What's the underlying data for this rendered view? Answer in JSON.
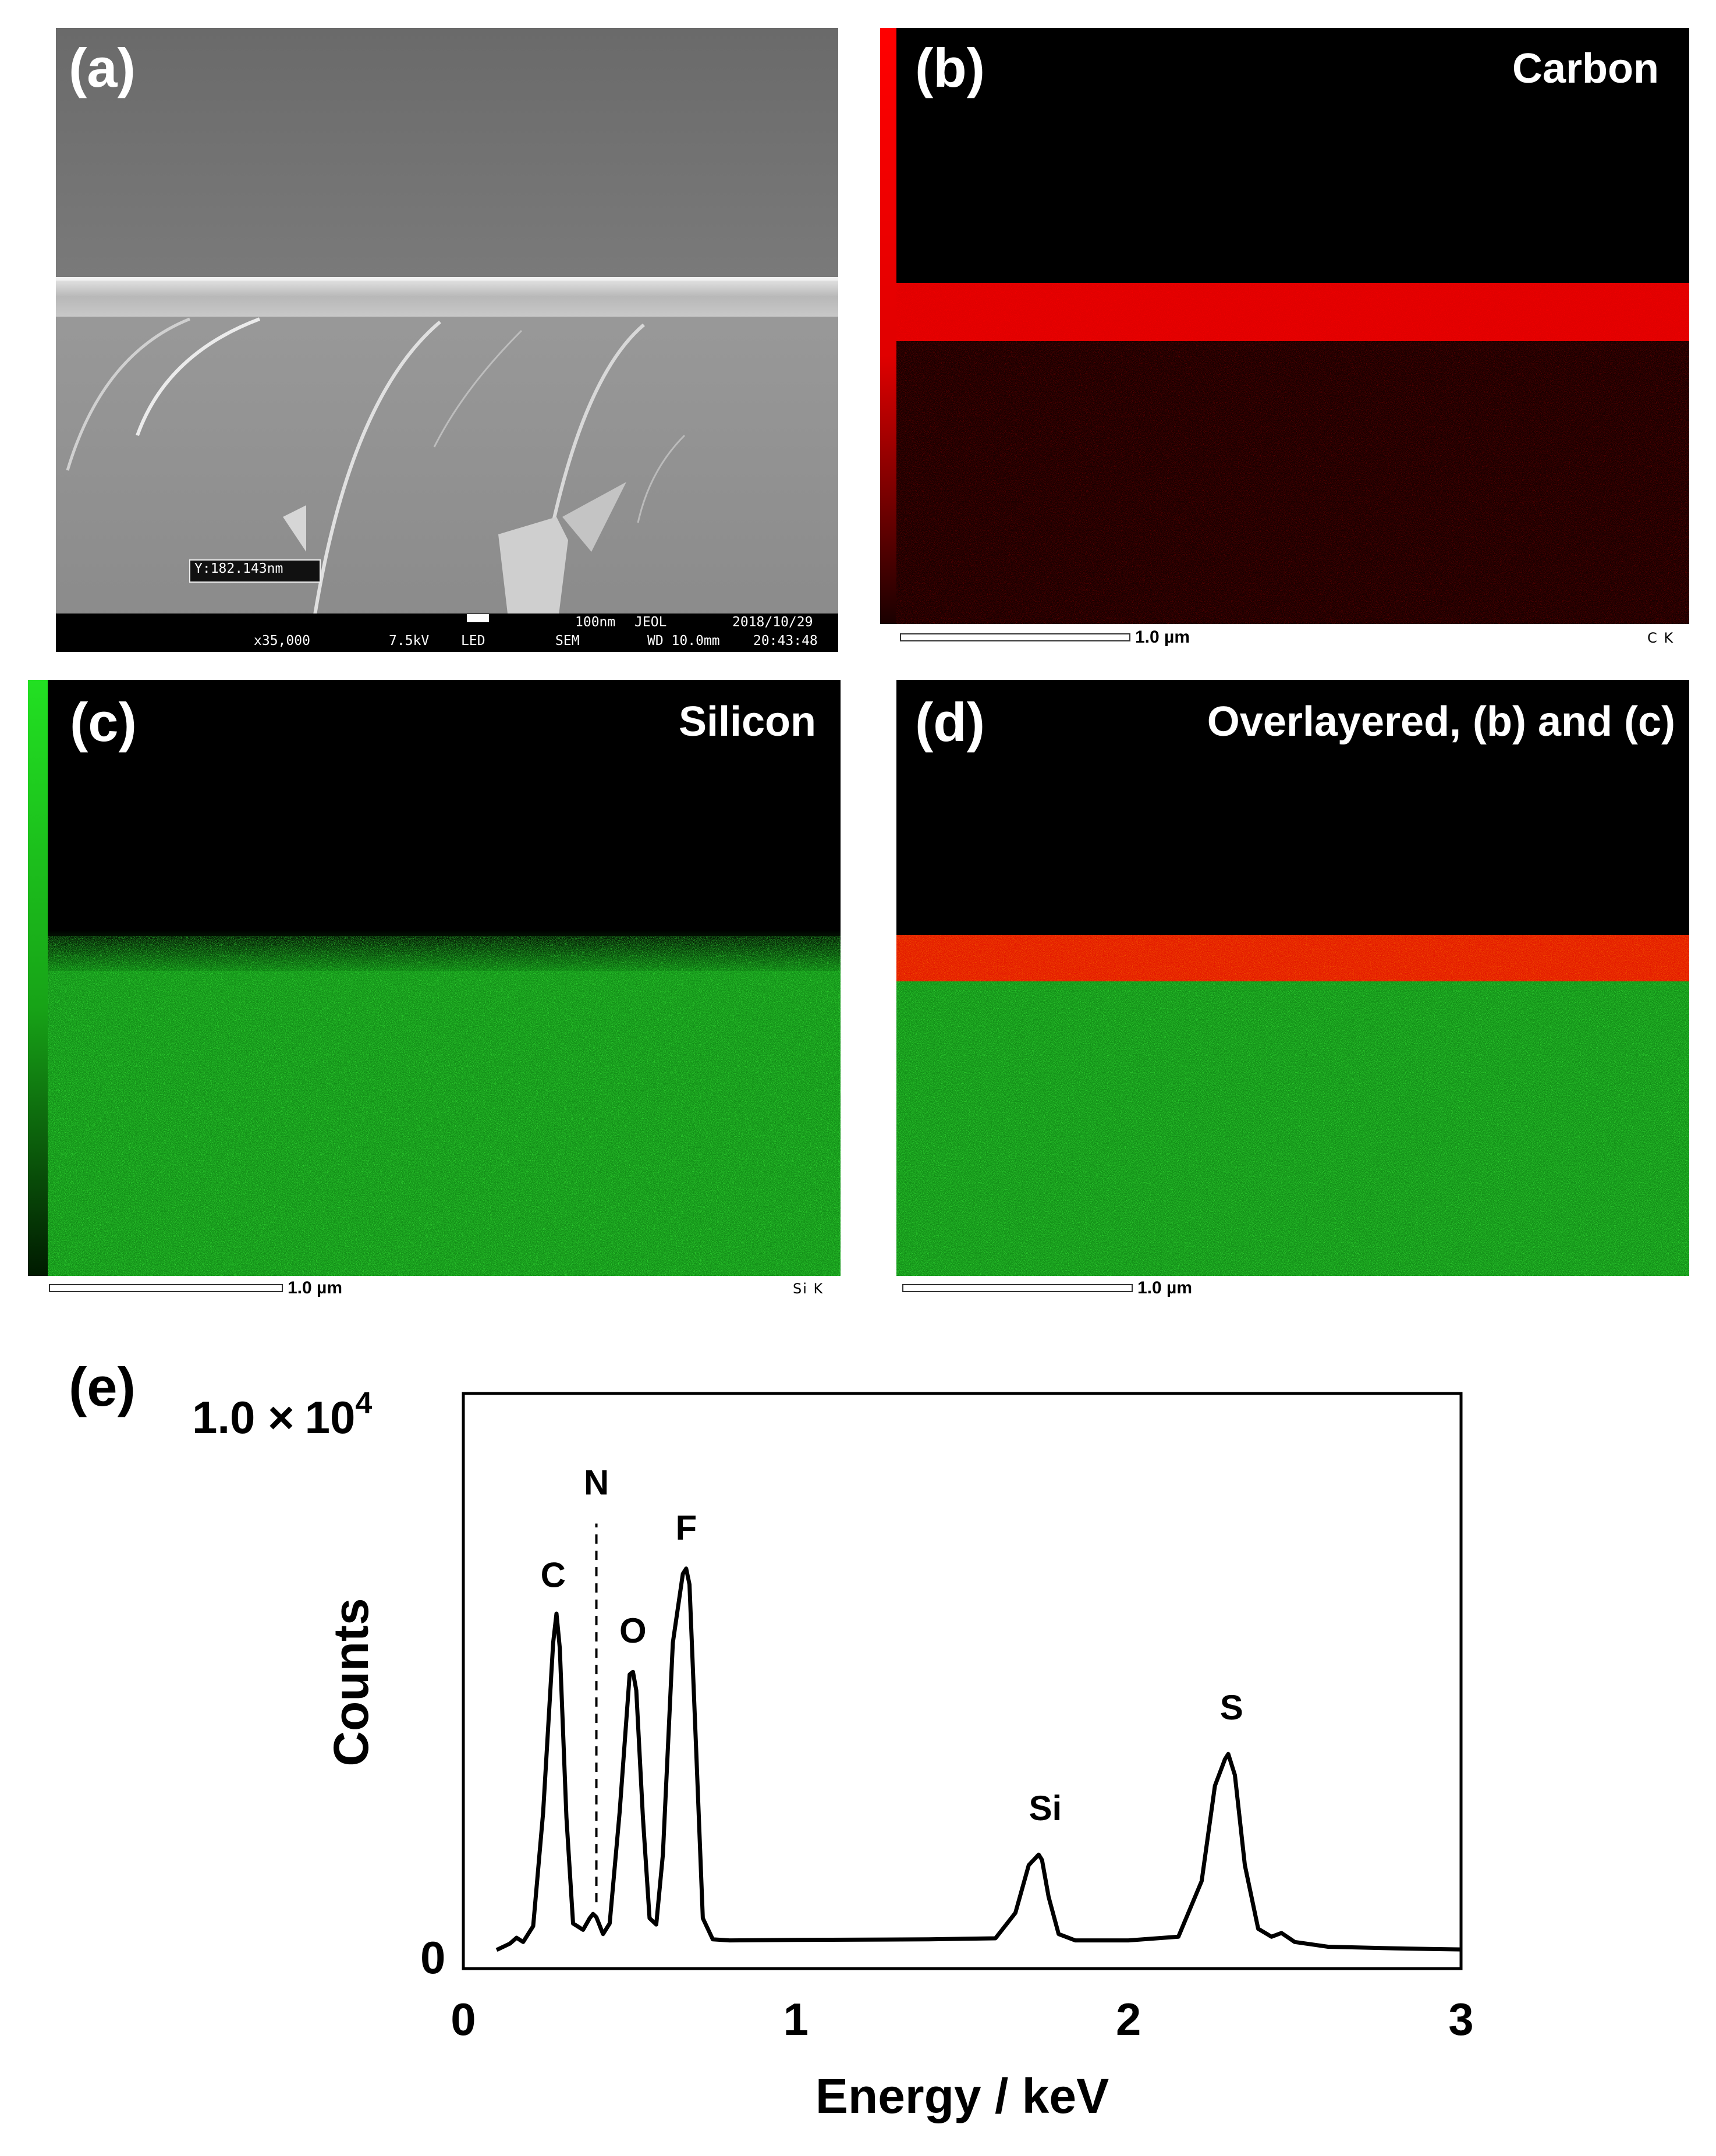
{
  "panels": {
    "a": {
      "label": "(a)",
      "measurement": "Y:182.143nm",
      "info_bar": {
        "magnification": "x35,000",
        "voltage": "7.5kV",
        "detector": "LED",
        "mode": "SEM",
        "scale": "100nm",
        "maker": "JEOL",
        "working_distance": "WD 10.0mm",
        "date": "2018/10/29",
        "time": "20:43:48"
      }
    },
    "b": {
      "label": "(b)",
      "element": "Carbon",
      "scale_label": "1.0 µm",
      "line_name": "C K",
      "color": "#ff0000"
    },
    "c": {
      "label": "(c)",
      "element": "Silicon",
      "scale_label": "1.0 µm",
      "line_name": "Si K",
      "color": "#1fd11f"
    },
    "d": {
      "label": "(d)",
      "element": "Overlayered, (b) and (c)",
      "scale_label": "1.0 µm"
    },
    "e": {
      "label": "(e)"
    }
  },
  "chart_data": {
    "type": "line",
    "title": "",
    "xlabel": "Energy / keV",
    "ylabel": "Counts",
    "xlim": [
      0,
      3
    ],
    "ylim": [
      0,
      10000
    ],
    "x_ticks": [
      "0",
      "1",
      "2",
      "3"
    ],
    "y_ticks": [
      "0",
      "1.0 × 10⁴"
    ],
    "y_top_label": {
      "mantissa": "1.0 ×",
      "base": "10",
      "exponent": "4"
    },
    "y_bottom_label": "0",
    "series": [
      {
        "x": [
          0.1,
          0.14,
          0.16,
          0.18,
          0.21,
          0.24,
          0.27,
          0.28,
          0.29,
          0.31,
          0.33,
          0.36,
          0.38,
          0.39,
          0.4,
          0.42,
          0.44,
          0.47,
          0.5,
          0.51,
          0.52,
          0.54,
          0.56,
          0.58,
          0.6,
          0.63,
          0.66,
          0.67,
          0.68,
          0.7,
          0.72,
          0.75,
          0.8,
          1.0,
          1.4,
          1.6,
          1.66,
          1.7,
          1.73,
          1.74,
          1.76,
          1.79,
          1.84,
          2.0,
          2.15,
          2.22,
          2.26,
          2.29,
          2.3,
          2.32,
          2.35,
          2.39,
          2.43,
          2.46,
          2.5,
          2.6,
          2.8,
          3.0
        ],
        "y": [
          0,
          120,
          230,
          150,
          450,
          2600,
          5800,
          6350,
          5700,
          2500,
          500,
          380,
          600,
          680,
          620,
          300,
          500,
          2600,
          5200,
          5250,
          4900,
          2500,
          600,
          480,
          1800,
          5800,
          7100,
          7200,
          6900,
          3800,
          600,
          200,
          180,
          190,
          200,
          220,
          700,
          1600,
          1800,
          1700,
          1000,
          300,
          180,
          180,
          250,
          1300,
          3100,
          3600,
          3700,
          3300,
          1600,
          400,
          250,
          320,
          150,
          60,
          30,
          10
        ]
      }
    ],
    "peak_labels": [
      {
        "text": "C",
        "x": 0.27,
        "y": 6850
      },
      {
        "text": "N",
        "x": 0.4,
        "y": 8600
      },
      {
        "text": "O",
        "x": 0.51,
        "y": 5800
      },
      {
        "text": "F",
        "x": 0.67,
        "y": 7750
      },
      {
        "text": "Si",
        "x": 1.75,
        "y": 2450
      },
      {
        "text": "S",
        "x": 2.31,
        "y": 4350
      }
    ],
    "marker_line": {
      "x": 0.4,
      "y_from": 900,
      "y_to": 8050
    },
    "grid": false,
    "legend": "none"
  }
}
